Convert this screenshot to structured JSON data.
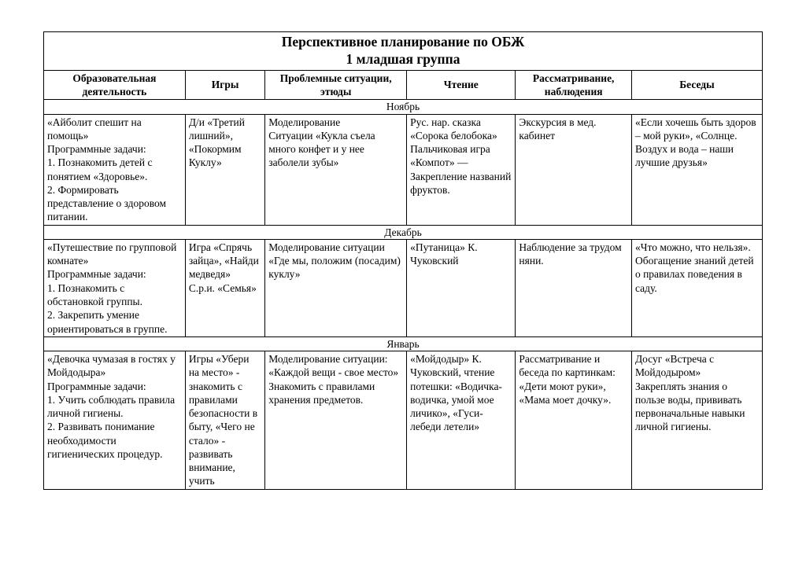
{
  "document": {
    "type": "table",
    "background_color": "#ffffff",
    "border_color": "#000000",
    "text_color": "#000000",
    "font_family": "Times New Roman",
    "title_fontsize": 17.5,
    "body_fontsize": 13.5,
    "title_line1": "Перспективное планирование по ОБЖ",
    "title_line2": "1 младшая группа",
    "column_widths_pct": [
      19.5,
      11,
      19.5,
      15,
      16,
      18
    ],
    "columns": [
      "Образовательная деятельность",
      "Игры",
      "Проблемные ситуации, этюды",
      "Чтение",
      "Рассматривание, наблюдения",
      "Беседы"
    ],
    "sections": [
      {
        "month": "Ноябрь",
        "cells": [
          "«Айболит спешит на помощь»\nПрограммные задачи:\n1. Познакомить детей с понятием «Здоровье».\n2. Формировать представление о здоровом питании.",
          "Д/и «Третий лишний», «Покормим Куклу»",
          "Моделирование\nСитуации «Кукла съела много конфет и у нее заболели зубы»",
          "Рус. нар. сказка «Сорока белобока»\nПальчиковая игра «Компот» — Закрепление названий фруктов.",
          "Экскурсия в мед. кабинет",
          "«Если хочешь быть здоров – мой руки», «Солнце. Воздух и вода – наши лучшие друзья»"
        ]
      },
      {
        "month": "Декабрь",
        "cells": [
          "«Путешествие по групповой комнате»\nПрограммные задачи:\n1. Познакомить с обстановкой группы.\n2. Закрепить умение ориентироваться в группе.",
          "Игра «Спрячь зайца», «Найди медведя»\nС.р.и. «Семья»",
          "Моделирование ситуации «Где мы, положим (посадим) куклу»",
          "«Путаница» К. Чуковский",
          "Наблюдение за трудом няни.",
          "«Что можно, что нельзя».\nОбогащение знаний детей о правилах поведения в саду."
        ]
      },
      {
        "month": "Январь",
        "cells": [
          "«Девочка чумазая в гостях у Мойдодыра»\nПрограммные задачи:\n1. Учить соблюдать правила личной гигиены.\n2. Развивать понимание необходимости гигиенических процедур.",
          "Игры «Убери на место» - знакомить с правилами безопасности в быту, «Чего не стало» - развивать внимание, учить",
          "Моделирование ситуации: «Каждой вещи -  свое место»\nЗнакомить с правилами хранения предметов.",
          "«Мойдодыр» К. Чуковский, чтение потешки: «Водичка-водичка, умой мое личико», «Гуси-лебеди летели»",
          "Рассматривание и беседа по картинкам: «Дети моют руки», «Мама моет дочку».",
          "Досуг «Встреча с Мойдодыром»\nЗакреплять знания о пользе воды, прививать первоначальные навыки личной гигиены."
        ]
      }
    ]
  }
}
